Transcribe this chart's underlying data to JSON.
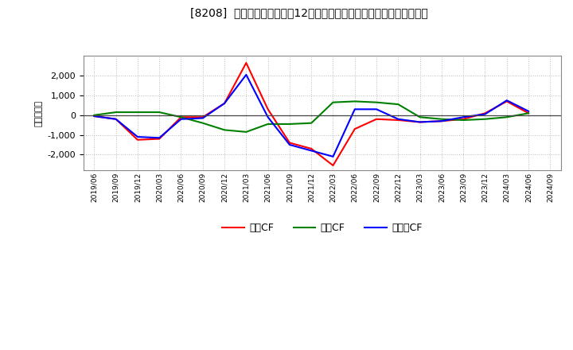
{
  "title": "[8208]  キャッシュフローの12か月移動合計の対前年同期増減額の推移",
  "ylabel": "（百万円）",
  "background_color": "#ffffff",
  "plot_bg_color": "#ffffff",
  "grid_color": "#bbbbbb",
  "ylim": [
    -2800,
    3000
  ],
  "yticks": [
    -2000,
    -1000,
    0,
    1000,
    2000
  ],
  "x_labels": [
    "2019/06",
    "2019/09",
    "2019/12",
    "2020/03",
    "2020/06",
    "2020/09",
    "2020/12",
    "2021/03",
    "2021/06",
    "2021/09",
    "2021/12",
    "2022/03",
    "2022/06",
    "2022/09",
    "2022/12",
    "2023/03",
    "2023/06",
    "2023/09",
    "2023/12",
    "2024/03",
    "2024/06",
    "2024/09"
  ],
  "operating_cf": [
    -50,
    -200,
    -1250,
    -1200,
    -100,
    -100,
    600,
    2650,
    300,
    -1400,
    -1700,
    -2550,
    -700,
    -200,
    -250,
    -350,
    -300,
    -200,
    100,
    700,
    100,
    null
  ],
  "investing_cf": [
    0,
    150,
    150,
    150,
    -100,
    -400,
    -750,
    -850,
    -450,
    -450,
    -400,
    650,
    700,
    650,
    550,
    -100,
    -200,
    -250,
    -200,
    -100,
    100,
    null
  ],
  "free_cf": [
    -50,
    -200,
    -1100,
    -1150,
    -200,
    -150,
    600,
    2050,
    -100,
    -1500,
    -1800,
    -2100,
    300,
    300,
    -200,
    -350,
    -300,
    -100,
    50,
    750,
    200,
    null
  ],
  "line_colors": {
    "operating": "#ff0000",
    "investing": "#008000",
    "free": "#0000ff"
  },
  "legend_labels": [
    "営業CF",
    "投資CF",
    "フリーCF"
  ],
  "line_width": 1.5
}
